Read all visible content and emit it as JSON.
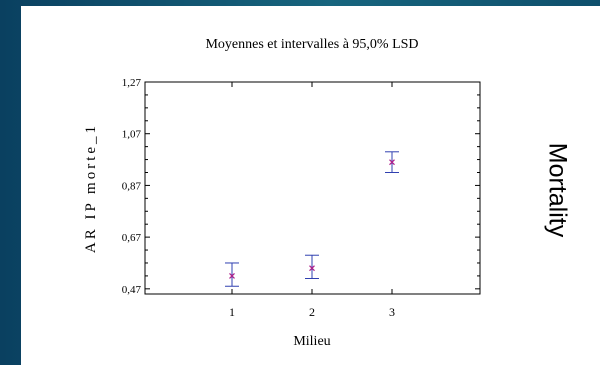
{
  "side_title": "Mortality",
  "chart_data": {
    "type": "scatter",
    "title": "Moyennes et intervalles à 95,0% LSD",
    "xlabel": "Milieu",
    "ylabel": "AR IP morte_1",
    "categories": [
      "1",
      "2",
      "3"
    ],
    "series": [
      {
        "means": [
          0.52,
          0.55,
          0.96
        ],
        "lower": [
          0.48,
          0.51,
          0.92
        ],
        "upper": [
          0.57,
          0.6,
          1.0
        ]
      }
    ],
    "ylim": [
      0.45,
      1.27
    ],
    "yticks": [
      "0,47",
      "0,67",
      "0,87",
      "1,07",
      "1,27"
    ],
    "colors": {
      "marker": "#b0208a",
      "errorbar": "#3040b0",
      "frame": "#000000"
    }
  }
}
